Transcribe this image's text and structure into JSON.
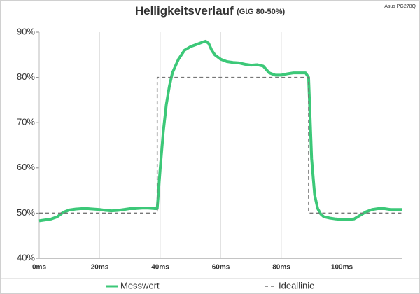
{
  "chart_data": {
    "type": "line",
    "title": "Helligkeitsverlauf",
    "subtitle": "(GtG 80-50%)",
    "annotation": "Asus PG278Q",
    "xlim": [
      0,
      120
    ],
    "xticks": [
      {
        "value": 0,
        "label": "0ms"
      },
      {
        "value": 20,
        "label": "20ms"
      },
      {
        "value": 40,
        "label": "40ms"
      },
      {
        "value": 60,
        "label": "60ms"
      },
      {
        "value": 80,
        "label": "80ms"
      },
      {
        "value": 100,
        "label": "100ms"
      }
    ],
    "ylim": [
      40,
      90
    ],
    "yticks": [
      {
        "value": 40,
        "label": "40%"
      },
      {
        "value": 50,
        "label": "50%"
      },
      {
        "value": 60,
        "label": "60%"
      },
      {
        "value": 70,
        "label": "70%"
      },
      {
        "value": 80,
        "label": "80%"
      },
      {
        "value": 90,
        "label": "90%"
      }
    ],
    "grid": true,
    "legend": "bottom",
    "series": [
      {
        "name": "Messwert",
        "color": "#3cc878",
        "dash": false,
        "x": [
          0,
          2,
          4,
          6,
          8,
          10,
          12,
          14,
          16,
          18,
          20,
          22,
          24,
          26,
          28,
          30,
          32,
          34,
          36,
          38,
          39,
          40,
          41,
          42,
          43,
          44,
          46,
          48,
          50,
          52,
          54,
          55,
          56,
          57,
          58,
          60,
          62,
          64,
          66,
          68,
          70,
          72,
          74,
          76,
          78,
          80,
          82,
          84,
          86,
          88,
          89,
          90,
          91,
          92,
          93,
          94,
          96,
          98,
          100,
          102,
          104,
          106,
          108,
          110,
          112,
          114,
          116,
          118,
          120
        ],
        "values": [
          48.3,
          48.5,
          48.7,
          49.2,
          50.2,
          50.7,
          50.9,
          51,
          51,
          50.9,
          50.8,
          50.6,
          50.5,
          50.6,
          50.8,
          51,
          51,
          51.1,
          51.1,
          51,
          51,
          60,
          68,
          74,
          78,
          81,
          84,
          86,
          86.8,
          87.3,
          87.8,
          88,
          87.5,
          86,
          85,
          84,
          83.5,
          83.3,
          83.2,
          82.9,
          82.7,
          82.8,
          82.5,
          81,
          80.5,
          80.5,
          80.8,
          81,
          81,
          81,
          80,
          62,
          54,
          51,
          49.8,
          49.2,
          48.9,
          48.7,
          48.6,
          48.6,
          48.7,
          49.5,
          50.3,
          50.8,
          51,
          51,
          50.8,
          50.8,
          50.8
        ]
      },
      {
        "name": "Ideallinie",
        "color": "#777777",
        "dash": true,
        "x": [
          0,
          39,
          39,
          89,
          89,
          120
        ],
        "values": [
          50,
          50,
          80,
          80,
          50,
          50
        ]
      }
    ]
  }
}
